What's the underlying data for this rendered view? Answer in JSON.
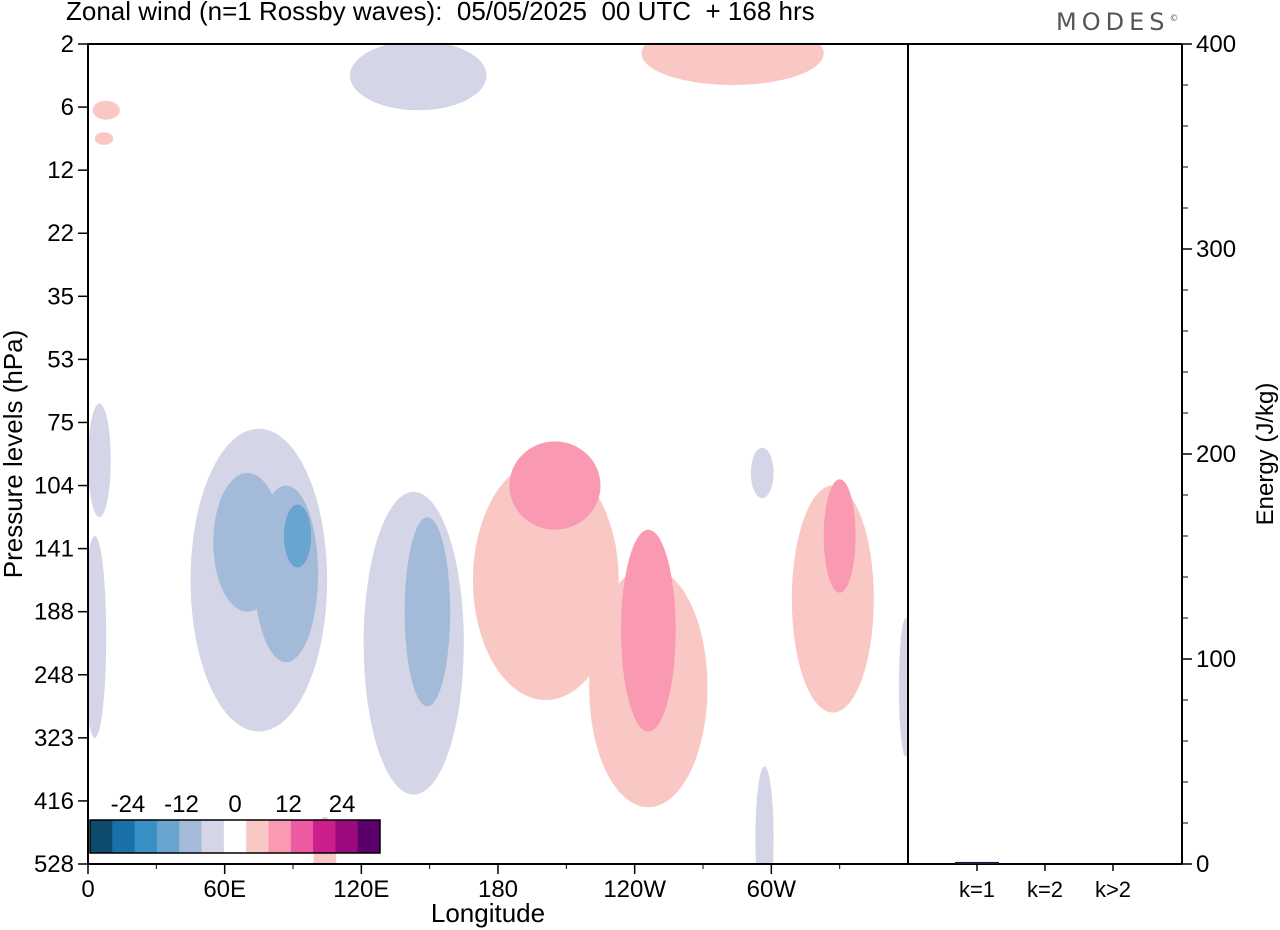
{
  "title": "Zonal wind (n=1 Rossby waves):  05/05/2025  00 UTC  + 168 hrs",
  "brand": "MODES",
  "brand_mark": "©",
  "colors": {
    "neg": [
      "#0d4a6e",
      "#1a70a8",
      "#3990c4",
      "#6aa5cf",
      "#a3bbd9",
      "#d4d6e8"
    ],
    "pos": [
      "#f9c8c4",
      "#f99ab2",
      "#ec5ba2",
      "#cc1f8d",
      "#9a0a7e",
      "#5b006b"
    ],
    "zero": "#ffffff"
  },
  "chart_data": [
    {
      "type": "heatmap",
      "title": "Zonal wind (n=1 Rossby waves):  05/05/2025  00 UTC  + 168 hrs",
      "xlabel": "Longitude",
      "ylabel": "Pressure levels (hPa)",
      "x_ticks": [
        "0",
        "60E",
        "120E",
        "180",
        "120W",
        "60W"
      ],
      "y_ticks": [
        "2",
        "6",
        "12",
        "22",
        "35",
        "53",
        "75",
        "104",
        "141",
        "188",
        "248",
        "323",
        "416",
        "528"
      ],
      "colorbar": {
        "labels": [
          "-24",
          "-12",
          "0",
          "12",
          "24"
        ],
        "levels": [
          -30,
          -25,
          -20,
          -15,
          -10,
          -5,
          0,
          5,
          10,
          15,
          20,
          25,
          30
        ]
      },
      "grid": false,
      "blobs": [
        {
          "lon": 145,
          "lev": 0.5,
          "rx": 30,
          "rl": 0.55,
          "level": -5
        },
        {
          "lon": 283,
          "lev": 0.15,
          "rx": 40,
          "rl": 0.5,
          "level": 5
        },
        {
          "lon": 8,
          "lev": 1.05,
          "rx": 6,
          "rl": 0.15,
          "level": 5
        },
        {
          "lon": 7,
          "lev": 1.5,
          "rx": 4,
          "rl": 0.1,
          "level": 5
        },
        {
          "lon": 5,
          "lev": 6.6,
          "rx": 5,
          "rl": 0.9,
          "level": -5
        },
        {
          "lon": 3,
          "lev": 9.4,
          "rx": 5,
          "rl": 1.6,
          "level": -5
        },
        {
          "lon": 75,
          "lev": 8.5,
          "rx": 30,
          "rl": 2.4,
          "level": -5
        },
        {
          "lon": 70,
          "lev": 7.9,
          "rx": 15,
          "rl": 1.1,
          "level": -10
        },
        {
          "lon": 87,
          "lev": 8.4,
          "rx": 14,
          "rl": 1.4,
          "level": -10
        },
        {
          "lon": 92,
          "lev": 7.8,
          "rx": 6,
          "rl": 0.5,
          "level": -15
        },
        {
          "lon": 143,
          "lev": 9.5,
          "rx": 22,
          "rl": 2.4,
          "level": -5
        },
        {
          "lon": 149,
          "lev": 9.0,
          "rx": 10,
          "rl": 1.5,
          "level": -10
        },
        {
          "lon": 201,
          "lev": 8.5,
          "rx": 32,
          "rl": 1.9,
          "level": 5
        },
        {
          "lon": 246,
          "lev": 10.2,
          "rx": 26,
          "rl": 1.9,
          "level": 5
        },
        {
          "lon": 205,
          "lev": 7.0,
          "rx": 20,
          "rl": 0.7,
          "level": 10
        },
        {
          "lon": 246,
          "lev": 9.3,
          "rx": 12,
          "rl": 1.6,
          "level": 10
        },
        {
          "lon": 296,
          "lev": 6.8,
          "rx": 5,
          "rl": 0.4,
          "level": -5
        },
        {
          "lon": 297,
          "lev": 12.6,
          "rx": 4,
          "rl": 1.15,
          "level": -5
        },
        {
          "lon": 327,
          "lev": 8.8,
          "rx": 18,
          "rl": 1.8,
          "level": 5
        },
        {
          "lon": 330,
          "lev": 7.8,
          "rx": 7,
          "rl": 0.9,
          "level": 10
        },
        {
          "lon": 104,
          "lev": 12.9,
          "rx": 5,
          "rl": 0.65,
          "level": 5
        },
        {
          "lon": 359,
          "lev": 10.2,
          "rx": 3,
          "rl": 1.1,
          "level": -5
        }
      ]
    },
    {
      "type": "bar",
      "ylabel": "Energy (J/kg)",
      "categories": [
        "k=1",
        "k=2",
        "k>2"
      ],
      "values": [
        1,
        0,
        0
      ],
      "ylim": [
        0,
        400
      ],
      "y_ticks": [
        "0",
        "100",
        "200",
        "300",
        "400"
      ]
    }
  ]
}
